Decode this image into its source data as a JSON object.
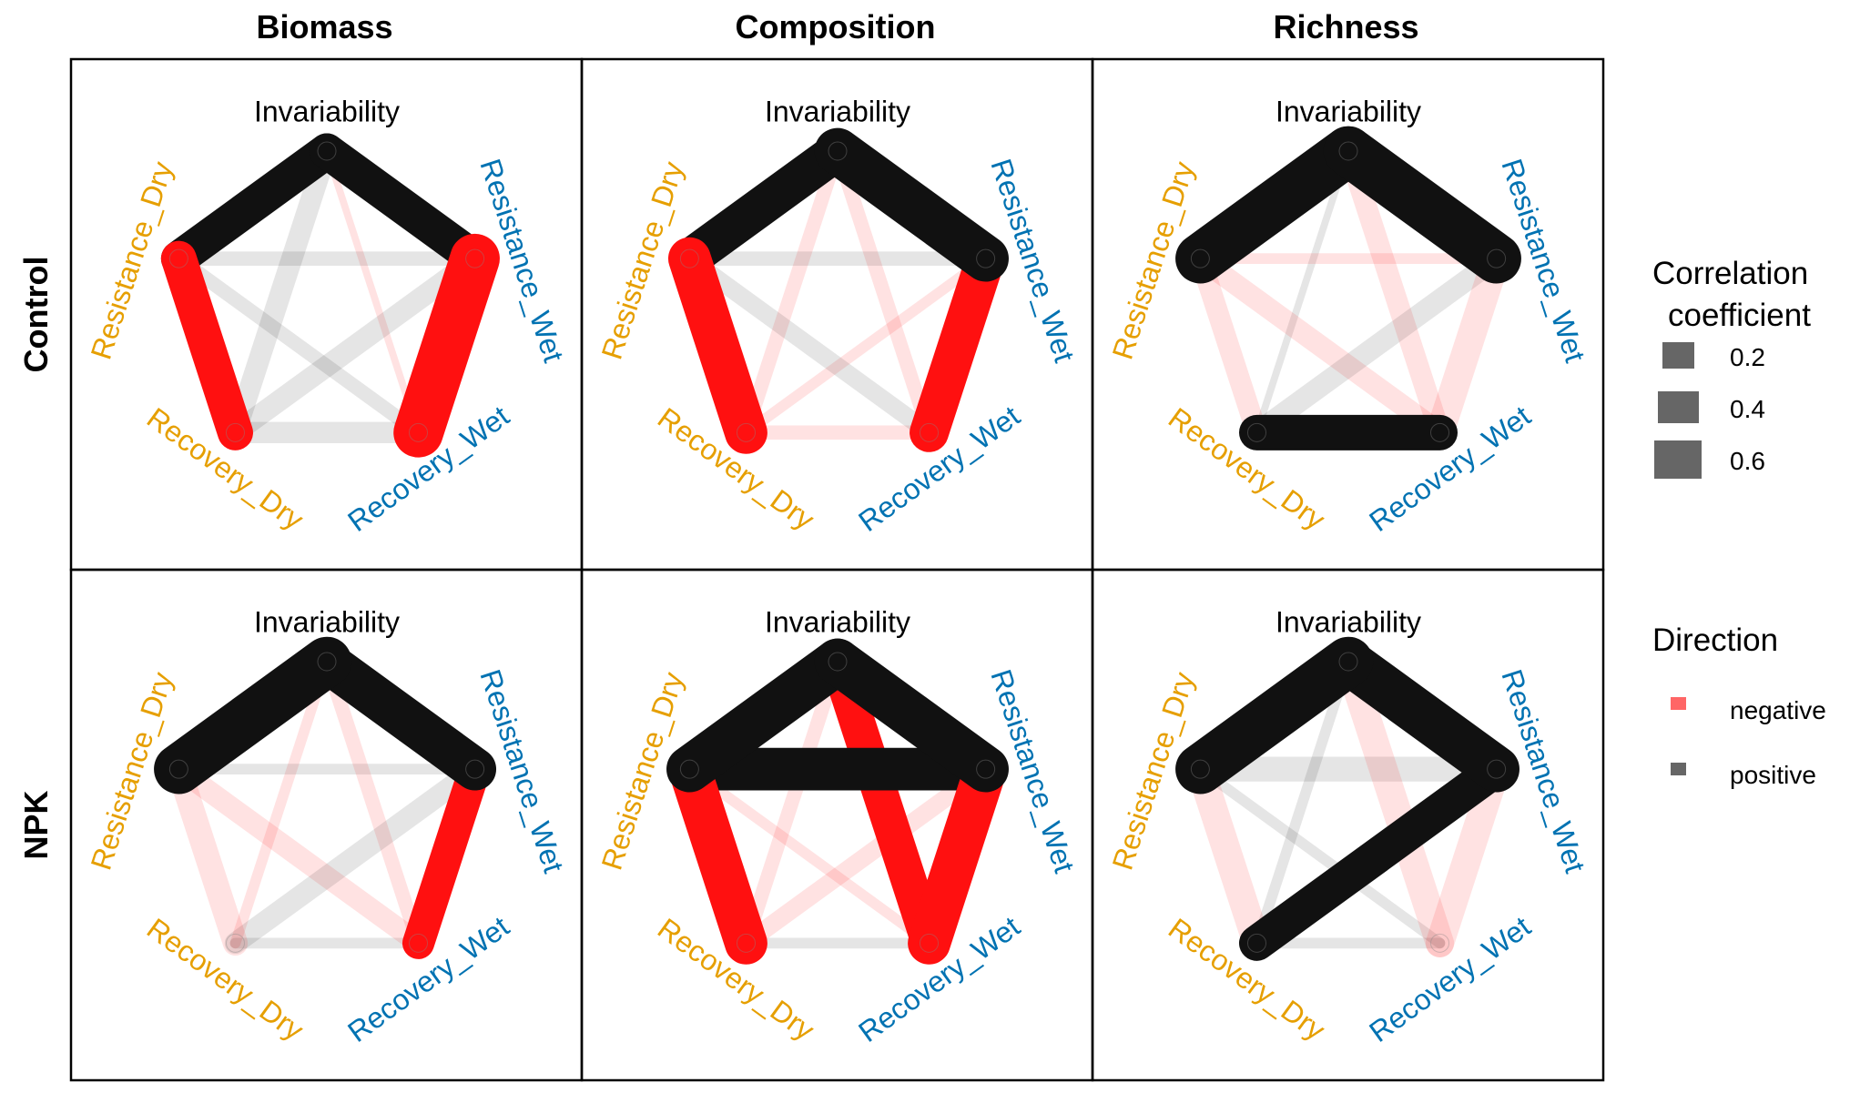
{
  "chart_data": {
    "type": "network",
    "columns": [
      "Biomass",
      "Composition",
      "Richness"
    ],
    "rows": [
      "Control",
      "NPK"
    ],
    "nodes": [
      {
        "id": "Invariability",
        "label": "Invariability",
        "color": "#000000"
      },
      {
        "id": "Resistance_Wet",
        "label": "Resistance_Wet",
        "color": "#0072B2"
      },
      {
        "id": "Recovery_Wet",
        "label": "Recovery_Wet",
        "color": "#0072B2"
      },
      {
        "id": "Recovery_Dry",
        "label": "Recovery_Dry",
        "color": "#E69F00"
      },
      {
        "id": "Resistance_Dry",
        "label": "Resistance_Dry",
        "color": "#E69F00"
      }
    ],
    "colors": {
      "positive": "#111111",
      "negative": "#ff1010",
      "legend_positive": "#666666",
      "legend_negative": "#ff6666"
    },
    "panels": [
      {
        "row": "Control",
        "column": "Biomass",
        "edges": [
          [
            "Invariability",
            "Resistance_Dry",
            0.5
          ],
          [
            "Invariability",
            "Resistance_Wet",
            0.5
          ],
          [
            "Resistance_Dry",
            "Recovery_Dry",
            -0.5
          ],
          [
            "Resistance_Wet",
            "Recovery_Wet",
            -0.7
          ],
          [
            "Invariability",
            "Recovery_Dry",
            0.3
          ],
          [
            "Invariability",
            "Recovery_Wet",
            -0.1
          ],
          [
            "Resistance_Dry",
            "Resistance_Wet",
            0.2
          ],
          [
            "Resistance_Dry",
            "Recovery_Wet",
            0.2
          ],
          [
            "Resistance_Wet",
            "Recovery_Dry",
            0.3
          ],
          [
            "Recovery_Dry",
            "Recovery_Wet",
            0.3
          ]
        ]
      },
      {
        "row": "Control",
        "column": "Composition",
        "edges": [
          [
            "Invariability",
            "Resistance_Dry",
            0.55
          ],
          [
            "Invariability",
            "Resistance_Wet",
            0.65
          ],
          [
            "Resistance_Dry",
            "Recovery_Dry",
            -0.6
          ],
          [
            "Resistance_Wet",
            "Recovery_Wet",
            -0.55
          ],
          [
            "Invariability",
            "Recovery_Dry",
            -0.2
          ],
          [
            "Invariability",
            "Recovery_Wet",
            -0.2
          ],
          [
            "Resistance_Dry",
            "Resistance_Wet",
            0.2
          ],
          [
            "Resistance_Dry",
            "Recovery_Wet",
            0.25
          ],
          [
            "Resistance_Wet",
            "Recovery_Dry",
            -0.15
          ],
          [
            "Recovery_Dry",
            "Recovery_Wet",
            -0.2
          ]
        ]
      },
      {
        "row": "Control",
        "column": "Richness",
        "edges": [
          [
            "Invariability",
            "Resistance_Dry",
            0.7
          ],
          [
            "Invariability",
            "Resistance_Wet",
            0.7
          ],
          [
            "Resistance_Dry",
            "Resistance_Wet",
            -0.15
          ],
          [
            "Resistance_Dry",
            "Recovery_Dry",
            -0.3
          ],
          [
            "Resistance_Dry",
            "Recovery_Wet",
            -0.3
          ],
          [
            "Invariability",
            "Recovery_Dry",
            0.1
          ],
          [
            "Invariability",
            "Recovery_Wet",
            -0.3
          ],
          [
            "Resistance_Wet",
            "Recovery_Dry",
            0.3
          ],
          [
            "Resistance_Wet",
            "Recovery_Wet",
            -0.4
          ],
          [
            "Recovery_Dry",
            "Recovery_Wet",
            0.5
          ]
        ]
      },
      {
        "row": "NPK",
        "column": "Biomass",
        "edges": [
          [
            "Invariability",
            "Resistance_Dry",
            0.7
          ],
          [
            "Invariability",
            "Resistance_Wet",
            0.6
          ],
          [
            "Resistance_Wet",
            "Recovery_Wet",
            -0.45
          ],
          [
            "Resistance_Dry",
            "Recovery_Dry",
            -0.35
          ],
          [
            "Resistance_Dry",
            "Recovery_Wet",
            -0.3
          ],
          [
            "Invariability",
            "Recovery_Dry",
            -0.15
          ],
          [
            "Invariability",
            "Recovery_Wet",
            -0.2
          ],
          [
            "Resistance_Dry",
            "Resistance_Wet",
            0.15
          ],
          [
            "Resistance_Wet",
            "Recovery_Dry",
            0.3
          ],
          [
            "Recovery_Dry",
            "Recovery_Wet",
            0.15
          ]
        ]
      },
      {
        "row": "NPK",
        "column": "Composition",
        "edges": [
          [
            "Invariability",
            "Resistance_Dry",
            0.65
          ],
          [
            "Invariability",
            "Resistance_Wet",
            0.65
          ],
          [
            "Resistance_Dry",
            "Resistance_Wet",
            0.6
          ],
          [
            "Resistance_Dry",
            "Recovery_Dry",
            -0.6
          ],
          [
            "Resistance_Wet",
            "Recovery_Wet",
            -0.6
          ],
          [
            "Invariability",
            "Recovery_Wet",
            -0.5
          ],
          [
            "Invariability",
            "Recovery_Dry",
            -0.2
          ],
          [
            "Resistance_Dry",
            "Recovery_Wet",
            -0.15
          ],
          [
            "Resistance_Wet",
            "Recovery_Dry",
            -0.25
          ],
          [
            "Recovery_Dry",
            "Recovery_Wet",
            0.15
          ]
        ]
      },
      {
        "row": "NPK",
        "column": "Richness",
        "edges": [
          [
            "Invariability",
            "Resistance_Dry",
            0.7
          ],
          [
            "Invariability",
            "Resistance_Wet",
            0.65
          ],
          [
            "Resistance_Dry",
            "Resistance_Wet",
            0.35
          ],
          [
            "Resistance_Dry",
            "Recovery_Dry",
            -0.4
          ],
          [
            "Resistance_Wet",
            "Recovery_Wet",
            -0.4
          ],
          [
            "Invariability",
            "Recovery_Wet",
            -0.4
          ],
          [
            "Invariability",
            "Recovery_Dry",
            0.15
          ],
          [
            "Resistance_Dry",
            "Recovery_Wet",
            0.15
          ],
          [
            "Resistance_Wet",
            "Recovery_Dry",
            0.5
          ],
          [
            "Recovery_Dry",
            "Recovery_Wet",
            0.15
          ]
        ]
      }
    ],
    "legend": {
      "size_title_line1": "Correlation",
      "size_title_line2": "coefficient",
      "size_values": [
        "0.2",
        "0.4",
        "0.6"
      ],
      "direction_title": "Direction",
      "direction_values": [
        "negative",
        "positive"
      ],
      "placement": "right"
    }
  }
}
